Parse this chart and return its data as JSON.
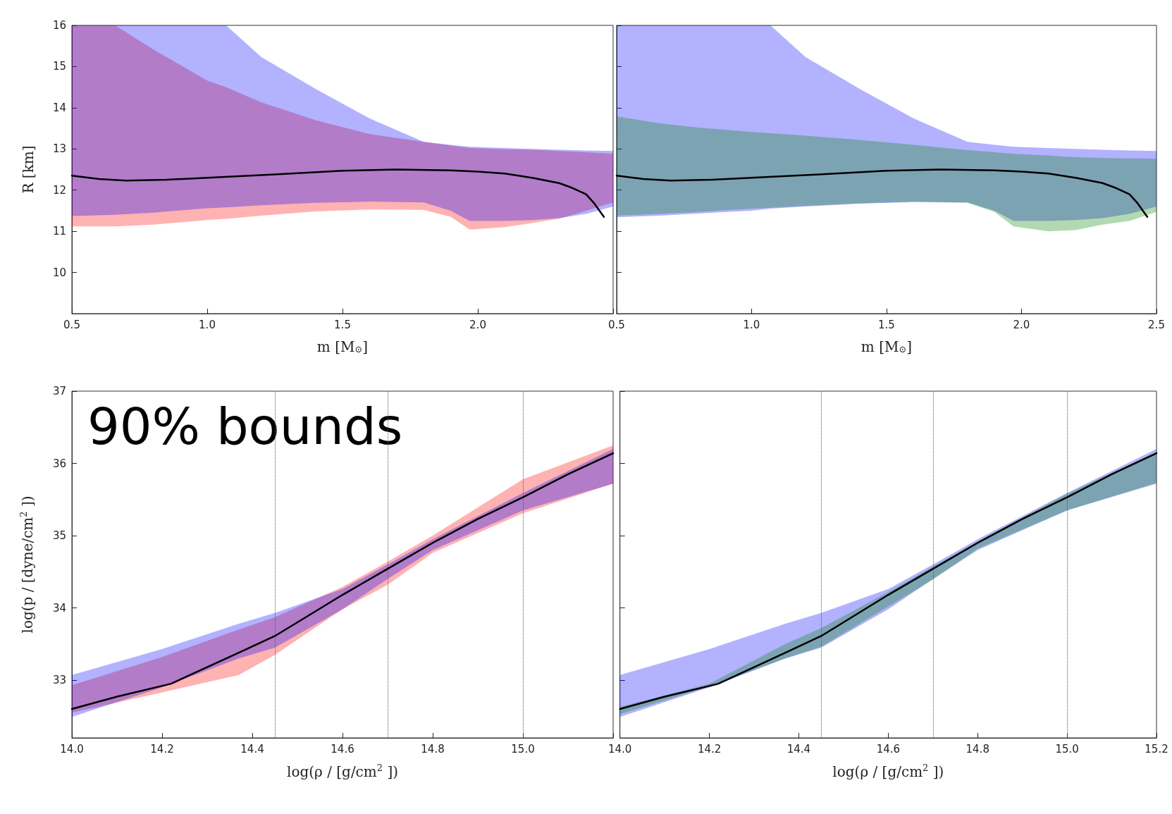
{
  "chart_data": [
    {
      "type": "line",
      "xlabel": "m [M$_{⊙}$]",
      "ylabel": "R [km]",
      "xlim": [
        0.5,
        2.5
      ],
      "ylim": [
        9,
        16
      ],
      "xticks": [
        {
          "value": 0.5,
          "label": "0.5"
        },
        {
          "value": 1,
          "label": "1.0"
        },
        {
          "value": 1.5,
          "label": "1.5"
        },
        {
          "value": 2,
          "label": "2.0"
        },
        {
          "value": 2.5,
          "label": null
        }
      ],
      "yticks": [
        10,
        11,
        12,
        13,
        14,
        15,
        16
      ],
      "series": [
        {
          "color": "#ff0000",
          "x": [
            0.5,
            0.66,
            0.8,
            1.0,
            1.07,
            1.2,
            1.4,
            1.6,
            1.8,
            1.9,
            1.97,
            2.1,
            2.2,
            2.3,
            2.4,
            2.5
          ],
          "values": [
            null,
            null,
            null,
            null,
            null,
            null,
            null,
            null,
            null,
            null,
            null,
            null,
            null,
            null,
            null,
            null
          ],
          "lower": [
            11.12,
            11.12,
            11.16,
            11.27,
            11.3,
            11.38,
            11.48,
            11.53,
            11.52,
            11.35,
            11.04,
            11.1,
            11.2,
            11.3,
            11.5,
            11.7
          ],
          "upper": [
            16,
            16,
            15.42,
            14.66,
            14.5,
            14.13,
            13.7,
            13.36,
            13.17,
            13.08,
            13.02,
            12.99,
            12.98,
            12.95,
            12.92,
            12.88
          ]
        },
        {
          "color": "#0000ff",
          "x": [
            0.5,
            0.66,
            0.8,
            1.0,
            1.07,
            1.2,
            1.4,
            1.6,
            1.8,
            1.9,
            1.97,
            2.1,
            2.2,
            2.3,
            2.4,
            2.5
          ],
          "values": [
            null,
            null,
            null,
            null,
            null,
            null,
            null,
            null,
            null,
            null,
            null,
            null,
            null,
            null,
            null,
            null
          ],
          "lower": [
            11.37,
            11.4,
            11.45,
            11.56,
            11.58,
            11.63,
            11.69,
            11.72,
            11.7,
            11.5,
            11.25,
            11.25,
            11.27,
            11.32,
            11.42,
            11.6
          ],
          "upper": [
            16,
            16,
            16,
            16,
            16,
            15.23,
            14.46,
            13.74,
            13.17,
            13.1,
            13.05,
            13.02,
            13.0,
            12.98,
            12.96,
            12.95
          ]
        },
        {
          "color": "#000000",
          "x": [
            0.5,
            0.6,
            0.7,
            0.85,
            1.0,
            1.25,
            1.5,
            1.7,
            1.9,
            2.0,
            2.1,
            2.2,
            2.3,
            2.35,
            2.4,
            2.43,
            2.466
          ],
          "values": [
            12.35,
            12.27,
            12.23,
            12.25,
            12.3,
            12.38,
            12.47,
            12.5,
            12.48,
            12.45,
            12.4,
            12.3,
            12.17,
            12.05,
            11.9,
            11.68,
            11.35
          ]
        }
      ]
    },
    {
      "type": "line",
      "xlabel": "m [M$_{⊙}$]",
      "xlim": [
        0.5,
        2.5
      ],
      "ylim": [
        9,
        16
      ],
      "tick_labels": "x",
      "xticks": [
        {
          "value": 0.5,
          "label": "0.5"
        },
        {
          "value": 1,
          "label": "1.0"
        },
        {
          "value": 1.5,
          "label": "1.5"
        },
        {
          "value": 2,
          "label": "2.0"
        },
        {
          "value": 2.5,
          "label": "2.5"
        }
      ],
      "yticks": [
        10,
        11,
        12,
        13,
        14,
        15,
        16
      ],
      "series": [
        {
          "color": "#0000ff",
          "x": [
            0.5,
            0.66,
            0.8,
            1.0,
            1.07,
            1.2,
            1.4,
            1.6,
            1.8,
            1.9,
            1.97,
            2.1,
            2.2,
            2.3,
            2.4,
            2.5
          ],
          "values": [
            null,
            null,
            null,
            null,
            null,
            null,
            null,
            null,
            null,
            null,
            null,
            null,
            null,
            null,
            null,
            null
          ],
          "lower": [
            11.34,
            11.38,
            11.43,
            11.5,
            11.55,
            11.6,
            11.67,
            11.71,
            11.7,
            11.5,
            11.25,
            11.25,
            11.27,
            11.32,
            11.42,
            11.6
          ],
          "upper": [
            16,
            16,
            16,
            16,
            16,
            15.23,
            14.46,
            13.74,
            13.17,
            13.1,
            13.05,
            13.02,
            13.0,
            12.98,
            12.96,
            12.95
          ]
        },
        {
          "color": "#008000",
          "x": [
            0.5,
            0.66,
            0.8,
            1.0,
            1.07,
            1.2,
            1.4,
            1.6,
            1.8,
            1.9,
            1.97,
            2.1,
            2.2,
            2.3,
            2.4,
            2.5
          ],
          "values": [
            null,
            null,
            null,
            null,
            null,
            null,
            null,
            null,
            null,
            null,
            null,
            null,
            null,
            null,
            null,
            null
          ],
          "lower": [
            11.38,
            11.42,
            11.47,
            11.55,
            11.57,
            11.62,
            11.68,
            11.72,
            11.69,
            11.47,
            11.12,
            11.0,
            11.03,
            11.16,
            11.25,
            11.47
          ],
          "upper": [
            13.79,
            13.62,
            13.52,
            13.41,
            13.38,
            13.32,
            13.22,
            13.1,
            12.97,
            12.92,
            12.88,
            12.84,
            12.8,
            12.78,
            12.77,
            12.76
          ]
        },
        {
          "color": "#000000",
          "x": [
            0.5,
            0.6,
            0.7,
            0.85,
            1.0,
            1.25,
            1.5,
            1.7,
            1.9,
            2.0,
            2.1,
            2.2,
            2.3,
            2.35,
            2.4,
            2.43,
            2.466
          ],
          "values": [
            12.35,
            12.27,
            12.23,
            12.25,
            12.3,
            12.38,
            12.47,
            12.5,
            12.48,
            12.45,
            12.4,
            12.3,
            12.17,
            12.05,
            11.9,
            11.68,
            11.35
          ]
        }
      ]
    },
    {
      "type": "line",
      "xlabel": "log(ρ / [g/cm$^{2}$ ])",
      "ylabel": "log(p / [dyne/cm$^{2}$ ])",
      "xlim": [
        14.0,
        15.2
      ],
      "ylim": [
        32.2,
        37
      ],
      "xticks": [
        {
          "value": 14,
          "label": "14.0"
        },
        {
          "value": 14.2,
          "label": "14.2"
        },
        {
          "value": 14.4,
          "label": "14.4"
        },
        {
          "value": 14.6,
          "label": "14.6"
        },
        {
          "value": 14.8,
          "label": "14.8"
        },
        {
          "value": 15,
          "label": "15.0"
        },
        {
          "value": 15.2,
          "label": null
        }
      ],
      "yticks": [
        33,
        34,
        35,
        36,
        37
      ],
      "annotations": [
        "90% bounds"
      ],
      "ref_lines": [
        {
          "axis": "x",
          "value": 14.45,
          "line_style": "dotted"
        },
        {
          "axis": "x",
          "value": 14.7,
          "line_style": "dotted"
        },
        {
          "axis": "x",
          "value": 15.0,
          "line_style": "dotted"
        }
      ],
      "series": [
        {
          "color": "#ff0000",
          "x": [
            14.0,
            14.2,
            14.37,
            14.45,
            14.6,
            14.7,
            14.8,
            15.0,
            15.2
          ],
          "values": [
            null,
            null,
            null,
            null,
            null,
            null,
            null,
            null,
            null
          ],
          "lower": [
            32.55,
            32.83,
            33.07,
            33.35,
            33.98,
            34.32,
            34.76,
            35.31,
            35.72
          ],
          "upper": [
            32.93,
            33.32,
            33.7,
            33.87,
            34.29,
            34.64,
            35.0,
            35.78,
            36.25
          ]
        },
        {
          "color": "#0000ff",
          "x": [
            14.0,
            14.2,
            14.37,
            14.45,
            14.6,
            14.7,
            14.8,
            15.0,
            15.2
          ],
          "values": [
            null,
            null,
            null,
            null,
            null,
            null,
            null,
            null,
            null
          ],
          "lower": [
            32.49,
            32.9,
            33.3,
            33.45,
            33.98,
            34.4,
            34.8,
            35.35,
            35.72
          ],
          "upper": [
            33.07,
            33.43,
            33.78,
            33.93,
            34.26,
            34.6,
            34.95,
            35.59,
            36.2
          ]
        },
        {
          "color": "#000000",
          "x": [
            14.0,
            14.1,
            14.22,
            14.37,
            14.45,
            14.6,
            14.7,
            14.8,
            14.9,
            15.0,
            15.1,
            15.2
          ],
          "values": [
            32.6,
            32.77,
            32.95,
            33.38,
            33.61,
            34.18,
            34.54,
            34.9,
            35.23,
            35.53,
            35.85,
            36.14
          ]
        }
      ]
    },
    {
      "type": "line",
      "xlabel": "log(ρ / [g/cm$^{2}$ ])",
      "xlim": [
        14.0,
        15.2
      ],
      "ylim": [
        32.2,
        37
      ],
      "tick_labels": "x",
      "xticks": [
        {
          "value": 14,
          "label": "14.0"
        },
        {
          "value": 14.2,
          "label": "14.2"
        },
        {
          "value": 14.4,
          "label": "14.4"
        },
        {
          "value": 14.6,
          "label": "14.6"
        },
        {
          "value": 14.8,
          "label": "14.8"
        },
        {
          "value": 15,
          "label": "15.0"
        },
        {
          "value": 15.2,
          "label": "15.2"
        }
      ],
      "yticks": [
        33,
        34,
        35,
        36,
        37
      ],
      "ref_lines": [
        {
          "axis": "x",
          "value": 14.45,
          "line_style": "dotted"
        },
        {
          "axis": "x",
          "value": 14.7,
          "line_style": "dotted"
        },
        {
          "axis": "x",
          "value": 15.0,
          "line_style": "dotted"
        }
      ],
      "series": [
        {
          "color": "#0000ff",
          "x": [
            14.0,
            14.2,
            14.37,
            14.45,
            14.6,
            14.7,
            14.8,
            15.0,
            15.2
          ],
          "values": [
            null,
            null,
            null,
            null,
            null,
            null,
            null,
            null,
            null
          ],
          "lower": [
            32.49,
            32.9,
            33.3,
            33.45,
            33.98,
            34.4,
            34.8,
            35.35,
            35.72
          ],
          "upper": [
            33.07,
            33.43,
            33.78,
            33.93,
            34.26,
            34.6,
            34.95,
            35.59,
            36.2
          ]
        },
        {
          "color": "#008000",
          "x": [
            14.0,
            14.2,
            14.37,
            14.45,
            14.6,
            14.7,
            14.8,
            15.0,
            15.2
          ],
          "values": [
            null,
            null,
            null,
            null,
            null,
            null,
            null,
            null,
            null
          ],
          "lower": [
            32.53,
            32.91,
            33.3,
            33.46,
            34.02,
            34.39,
            34.82,
            35.35,
            35.73
          ],
          "upper": [
            32.63,
            32.95,
            33.5,
            33.72,
            34.22,
            34.57,
            34.92,
            35.58,
            36.16
          ]
        },
        {
          "color": "#000000",
          "x": [
            14.0,
            14.1,
            14.22,
            14.37,
            14.45,
            14.6,
            14.7,
            14.8,
            14.9,
            15.0,
            15.1,
            15.2
          ],
          "values": [
            32.6,
            32.77,
            32.95,
            33.38,
            33.61,
            34.18,
            34.54,
            34.9,
            35.23,
            35.53,
            35.85,
            36.14
          ]
        }
      ]
    }
  ]
}
